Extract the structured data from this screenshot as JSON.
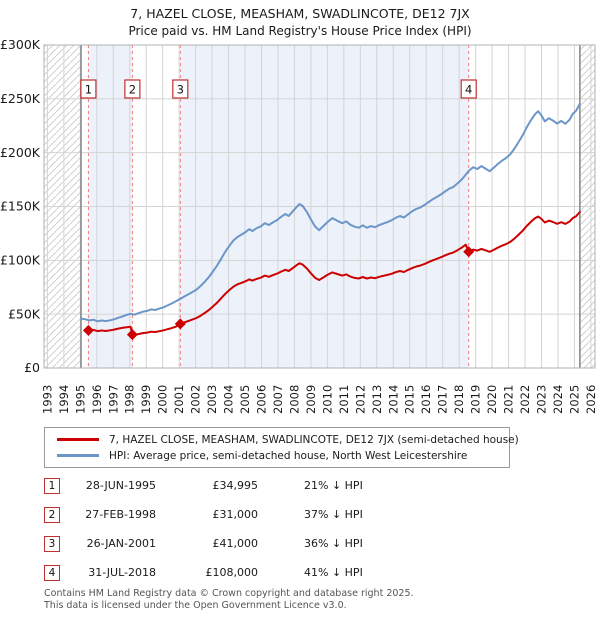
{
  "header": {
    "title_line1": "7, HAZEL CLOSE, MEASHAM, SWADLINCOTE, DE12 7JX",
    "title_line2": "Price paid vs. HM Land Registry's House Price Index (HPI)"
  },
  "chart_data": {
    "type": "line",
    "title": "7, HAZEL CLOSE, MEASHAM, SWADLINCOTE, DE12 7JX",
    "subtitle": "Price paid vs. HM Land Registry's House Price Index (HPI)",
    "xlabel": "",
    "ylabel": "",
    "xlim": [
      1993,
      2026
    ],
    "ylim": [
      0,
      300000
    ],
    "values_unit": "GBP thousands",
    "grid": true,
    "legend_position": "below",
    "x_ticks": [
      1993,
      1994,
      1995,
      1996,
      1997,
      1998,
      1999,
      2000,
      2001,
      2002,
      2003,
      2004,
      2005,
      2006,
      2007,
      2008,
      2009,
      2010,
      2011,
      2012,
      2013,
      2014,
      2015,
      2016,
      2017,
      2018,
      2019,
      2020,
      2021,
      2022,
      2023,
      2024,
      2025,
      2026
    ],
    "y_ticks": [
      {
        "value": 0,
        "label": "£0"
      },
      {
        "value": 50000,
        "label": "£50K"
      },
      {
        "value": 100000,
        "label": "£100K"
      },
      {
        "value": 150000,
        "label": "£150K"
      },
      {
        "value": 200000,
        "label": "£200K"
      },
      {
        "value": 250000,
        "label": "£250K"
      },
      {
        "value": 300000,
        "label": "£300K"
      }
    ],
    "data_range": {
      "start": 1995.04,
      "end": 2025.33
    },
    "ownership_bands": [
      [
        1995.49,
        1998.16
      ],
      [
        2001.07,
        2018.58
      ]
    ],
    "colors": {
      "band": "#edf2fa",
      "grid": "#d4d4d4",
      "plot_border": "#b0b0b0",
      "dashed": "#f37c7c",
      "hatch": "#c9c9c9",
      "boundary": "#8a8a8a",
      "marker_box_border": "#c03030",
      "text": "#1a1a1a"
    },
    "sales": [
      {
        "num": "1",
        "date": "28-JUN-1995",
        "year": 1995.49,
        "price": 34995,
        "price_label": "£34,995",
        "vs_hpi": "21% ↓ HPI"
      },
      {
        "num": "2",
        "date": "27-FEB-1998",
        "year": 1998.16,
        "price": 31000,
        "price_label": "£31,000",
        "vs_hpi": "37% ↓ HPI"
      },
      {
        "num": "3",
        "date": "26-JAN-2001",
        "year": 2001.07,
        "price": 41000,
        "price_label": "£41,000",
        "vs_hpi": "36% ↓ HPI"
      },
      {
        "num": "4",
        "date": "31-JUL-2018",
        "year": 2018.58,
        "price": 108000,
        "price_label": "£108,000",
        "vs_hpi": "41% ↓ HPI"
      }
    ],
    "series": [
      {
        "name": "7, HAZEL CLOSE, MEASHAM, SWADLINCOTE, DE12 7JX (semi-detached house)",
        "color": "#cc0000",
        "points": [
          [
            1995.49,
            35.0
          ],
          [
            1995.8,
            35.4
          ],
          [
            1996.05,
            34.3
          ],
          [
            1996.3,
            34.8
          ],
          [
            1996.55,
            34.4
          ],
          [
            1996.8,
            35.0
          ],
          [
            1997.05,
            35.7
          ],
          [
            1997.3,
            36.6
          ],
          [
            1997.55,
            37.2
          ],
          [
            1997.8,
            37.8
          ],
          [
            1998.05,
            38.3
          ],
          [
            1998.16,
            31.0
          ],
          [
            1998.3,
            30.8
          ],
          [
            1998.55,
            31.6
          ],
          [
            1998.8,
            32.4
          ],
          [
            1999.05,
            32.9
          ],
          [
            1999.3,
            33.7
          ],
          [
            1999.55,
            33.4
          ],
          [
            1999.8,
            34.2
          ],
          [
            2000.05,
            35.0
          ],
          [
            2000.3,
            36.0
          ],
          [
            2000.55,
            37.1
          ],
          [
            2000.8,
            38.4
          ],
          [
            2001.07,
            41.0
          ],
          [
            2001.3,
            42.3
          ],
          [
            2001.55,
            43.6
          ],
          [
            2001.8,
            45.0
          ],
          [
            2002.05,
            46.4
          ],
          [
            2002.3,
            48.6
          ],
          [
            2002.55,
            51.1
          ],
          [
            2002.8,
            53.8
          ],
          [
            2003.05,
            57.1
          ],
          [
            2003.3,
            60.6
          ],
          [
            2003.55,
            64.8
          ],
          [
            2003.8,
            68.9
          ],
          [
            2004.05,
            72.4
          ],
          [
            2004.3,
            75.6
          ],
          [
            2004.55,
            77.7
          ],
          [
            2004.8,
            79.1
          ],
          [
            2005.05,
            80.7
          ],
          [
            2005.25,
            82.3
          ],
          [
            2005.45,
            81.2
          ],
          [
            2005.7,
            82.8
          ],
          [
            2005.95,
            83.9
          ],
          [
            2006.2,
            85.8
          ],
          [
            2006.45,
            84.7
          ],
          [
            2006.7,
            86.3
          ],
          [
            2006.95,
            87.7
          ],
          [
            2007.2,
            89.6
          ],
          [
            2007.45,
            91.2
          ],
          [
            2007.65,
            90.1
          ],
          [
            2007.9,
            92.8
          ],
          [
            2008.1,
            95.1
          ],
          [
            2008.3,
            97.2
          ],
          [
            2008.5,
            96.0
          ],
          [
            2008.75,
            92.5
          ],
          [
            2009.0,
            88.0
          ],
          [
            2009.25,
            83.9
          ],
          [
            2009.5,
            81.7
          ],
          [
            2009.75,
            84.1
          ],
          [
            2010.0,
            86.5
          ],
          [
            2010.3,
            88.8
          ],
          [
            2010.6,
            87.3
          ],
          [
            2010.9,
            85.8
          ],
          [
            2011.15,
            86.9
          ],
          [
            2011.4,
            84.9
          ],
          [
            2011.65,
            83.7
          ],
          [
            2011.9,
            83.1
          ],
          [
            2012.15,
            84.5
          ],
          [
            2012.4,
            83.1
          ],
          [
            2012.65,
            84.1
          ],
          [
            2012.9,
            83.4
          ],
          [
            2013.15,
            84.7
          ],
          [
            2013.4,
            85.6
          ],
          [
            2013.65,
            86.5
          ],
          [
            2013.9,
            87.5
          ],
          [
            2014.15,
            89.0
          ],
          [
            2014.4,
            90.1
          ],
          [
            2014.65,
            89.2
          ],
          [
            2014.9,
            91.1
          ],
          [
            2015.15,
            92.8
          ],
          [
            2015.4,
            94.3
          ],
          [
            2015.65,
            95.2
          ],
          [
            2015.9,
            96.7
          ],
          [
            2016.15,
            98.4
          ],
          [
            2016.4,
            100.0
          ],
          [
            2016.65,
            101.4
          ],
          [
            2016.9,
            102.9
          ],
          [
            2017.15,
            104.6
          ],
          [
            2017.4,
            106.2
          ],
          [
            2017.65,
            107.3
          ],
          [
            2017.9,
            109.4
          ],
          [
            2018.15,
            111.7
          ],
          [
            2018.4,
            114.5
          ],
          [
            2018.58,
            108.0
          ],
          [
            2018.85,
            110.0
          ],
          [
            2019.1,
            109.0
          ],
          [
            2019.35,
            110.6
          ],
          [
            2019.6,
            109.3
          ],
          [
            2019.85,
            107.9
          ],
          [
            2020.1,
            109.7
          ],
          [
            2020.35,
            111.8
          ],
          [
            2020.6,
            113.6
          ],
          [
            2020.85,
            115.1
          ],
          [
            2021.1,
            117.1
          ],
          [
            2021.35,
            120.1
          ],
          [
            2021.6,
            123.6
          ],
          [
            2021.85,
            127.4
          ],
          [
            2022.1,
            131.9
          ],
          [
            2022.35,
            135.7
          ],
          [
            2022.6,
            139.0
          ],
          [
            2022.8,
            140.7
          ],
          [
            2023.0,
            138.4
          ],
          [
            2023.2,
            135.1
          ],
          [
            2023.45,
            136.9
          ],
          [
            2023.7,
            135.6
          ],
          [
            2023.95,
            133.9
          ],
          [
            2024.2,
            135.4
          ],
          [
            2024.45,
            133.8
          ],
          [
            2024.7,
            136.0
          ],
          [
            2024.9,
            139.2
          ],
          [
            2025.1,
            141.0
          ],
          [
            2025.33,
            144.9
          ]
        ]
      },
      {
        "name": "HPI: Average price, semi-detached house, North West Leicestershire",
        "color": "#6c96c8",
        "points": [
          [
            1995.04,
            46.0
          ],
          [
            1995.3,
            45.2
          ],
          [
            1995.55,
            44.2
          ],
          [
            1995.8,
            44.9
          ],
          [
            1996.05,
            43.4
          ],
          [
            1996.3,
            44.1
          ],
          [
            1996.55,
            43.6
          ],
          [
            1996.8,
            44.3
          ],
          [
            1997.05,
            45.2
          ],
          [
            1997.3,
            46.6
          ],
          [
            1997.55,
            47.8
          ],
          [
            1997.8,
            49.2
          ],
          [
            1998.05,
            50.3
          ],
          [
            1998.3,
            49.6
          ],
          [
            1998.55,
            51.0
          ],
          [
            1998.8,
            52.3
          ],
          [
            1999.05,
            53.0
          ],
          [
            1999.3,
            54.4
          ],
          [
            1999.55,
            53.9
          ],
          [
            1999.8,
            55.2
          ],
          [
            2000.05,
            56.4
          ],
          [
            2000.3,
            58.1
          ],
          [
            2000.55,
            59.9
          ],
          [
            2000.8,
            62.0
          ],
          [
            2001.07,
            64.2
          ],
          [
            2001.3,
            66.3
          ],
          [
            2001.55,
            68.4
          ],
          [
            2001.8,
            70.5
          ],
          [
            2002.05,
            72.8
          ],
          [
            2002.3,
            76.2
          ],
          [
            2002.55,
            80.1
          ],
          [
            2002.8,
            84.4
          ],
          [
            2003.05,
            89.5
          ],
          [
            2003.3,
            95.0
          ],
          [
            2003.55,
            101.5
          ],
          [
            2003.8,
            108.0
          ],
          [
            2004.05,
            113.5
          ],
          [
            2004.3,
            118.5
          ],
          [
            2004.55,
            121.8
          ],
          [
            2004.8,
            124.0
          ],
          [
            2005.05,
            126.5
          ],
          [
            2005.25,
            129.0
          ],
          [
            2005.45,
            127.2
          ],
          [
            2005.7,
            129.8
          ],
          [
            2005.95,
            131.5
          ],
          [
            2006.2,
            134.5
          ],
          [
            2006.45,
            132.8
          ],
          [
            2006.7,
            135.2
          ],
          [
            2006.95,
            137.5
          ],
          [
            2007.2,
            140.5
          ],
          [
            2007.45,
            143.0
          ],
          [
            2007.65,
            141.2
          ],
          [
            2007.9,
            145.5
          ],
          [
            2008.1,
            149.0
          ],
          [
            2008.3,
            152.3
          ],
          [
            2008.5,
            150.5
          ],
          [
            2008.75,
            145.0
          ],
          [
            2009.0,
            138.0
          ],
          [
            2009.25,
            131.5
          ],
          [
            2009.5,
            128.0
          ],
          [
            2009.75,
            131.8
          ],
          [
            2010.0,
            135.5
          ],
          [
            2010.3,
            139.2
          ],
          [
            2010.6,
            136.8
          ],
          [
            2010.9,
            134.5
          ],
          [
            2011.15,
            136.2
          ],
          [
            2011.4,
            133.0
          ],
          [
            2011.65,
            131.2
          ],
          [
            2011.9,
            130.3
          ],
          [
            2012.15,
            132.4
          ],
          [
            2012.4,
            130.2
          ],
          [
            2012.65,
            131.8
          ],
          [
            2012.9,
            130.8
          ],
          [
            2013.15,
            132.8
          ],
          [
            2013.4,
            134.2
          ],
          [
            2013.65,
            135.5
          ],
          [
            2013.9,
            137.2
          ],
          [
            2014.15,
            139.5
          ],
          [
            2014.4,
            141.2
          ],
          [
            2014.65,
            139.8
          ],
          [
            2014.9,
            142.8
          ],
          [
            2015.15,
            145.5
          ],
          [
            2015.4,
            147.8
          ],
          [
            2015.65,
            149.2
          ],
          [
            2015.9,
            151.5
          ],
          [
            2016.15,
            154.2
          ],
          [
            2016.4,
            156.8
          ],
          [
            2016.65,
            158.9
          ],
          [
            2016.9,
            161.2
          ],
          [
            2017.15,
            164.0
          ],
          [
            2017.4,
            166.5
          ],
          [
            2017.65,
            168.2
          ],
          [
            2017.9,
            171.5
          ],
          [
            2018.15,
            175.0
          ],
          [
            2018.4,
            179.5
          ],
          [
            2018.58,
            183.0
          ],
          [
            2018.85,
            186.5
          ],
          [
            2019.1,
            184.8
          ],
          [
            2019.35,
            187.5
          ],
          [
            2019.6,
            185.2
          ],
          [
            2019.85,
            182.8
          ],
          [
            2020.1,
            186.0
          ],
          [
            2020.35,
            189.5
          ],
          [
            2020.6,
            192.5
          ],
          [
            2020.85,
            195.0
          ],
          [
            2021.1,
            198.5
          ],
          [
            2021.35,
            203.5
          ],
          [
            2021.6,
            209.5
          ],
          [
            2021.85,
            216.0
          ],
          [
            2022.1,
            223.5
          ],
          [
            2022.35,
            230.0
          ],
          [
            2022.6,
            235.5
          ],
          [
            2022.8,
            238.5
          ],
          [
            2023.0,
            234.5
          ],
          [
            2023.2,
            229.0
          ],
          [
            2023.45,
            232.0
          ],
          [
            2023.7,
            229.8
          ],
          [
            2023.95,
            227.0
          ],
          [
            2024.2,
            229.5
          ],
          [
            2024.45,
            226.8
          ],
          [
            2024.7,
            230.5
          ],
          [
            2024.9,
            236.0
          ],
          [
            2025.1,
            239.0
          ],
          [
            2025.33,
            245.5
          ]
        ]
      }
    ]
  },
  "footer": {
    "line1": "Contains HM Land Registry data © Crown copyright and database right 2025.",
    "line2": "This data is licensed under the Open Government Licence v3.0."
  }
}
